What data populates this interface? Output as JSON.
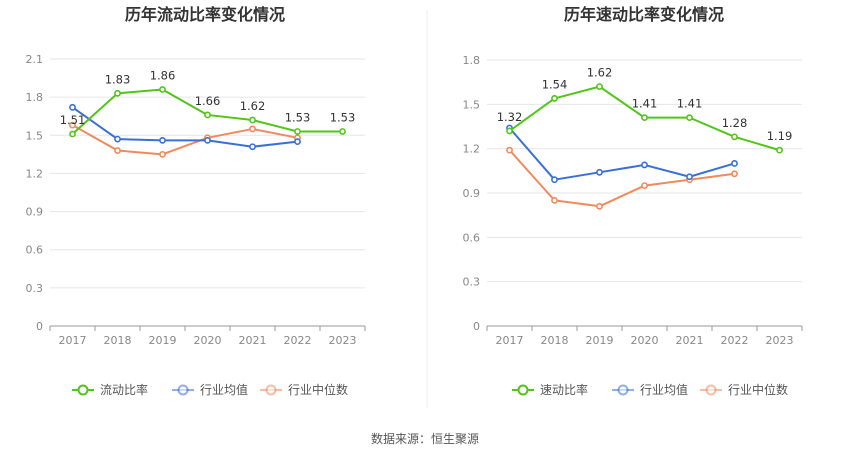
{
  "source": "数据来源：恒生聚源",
  "colors": {
    "company": "#52c41a",
    "industry_avg": "#3a6fd8",
    "industry_median": "#f08a5d",
    "grid": "#e6e6e6",
    "axis": "#999999"
  },
  "chart_data": [
    {
      "type": "line",
      "title": "历年流动比率变化情况",
      "categories": [
        "2017",
        "2018",
        "2019",
        "2020",
        "2021",
        "2022",
        "2023"
      ],
      "ylim": [
        0,
        2.1
      ],
      "yticks": [
        "0",
        "0.3",
        "0.6",
        "0.9",
        "1.2",
        "1.5",
        "1.8",
        "2.1"
      ],
      "grid": true,
      "legend_position": "bottom",
      "series": [
        {
          "name": "流动比率",
          "key": "company",
          "values": [
            1.51,
            1.83,
            1.86,
            1.66,
            1.62,
            1.53,
            1.53
          ],
          "labels": [
            "1.51",
            "1.83",
            "1.86",
            "1.66",
            "1.62",
            "1.53",
            "1.53"
          ]
        },
        {
          "name": "行业均值",
          "key": "industry_avg",
          "values": [
            1.72,
            1.47,
            1.46,
            1.46,
            1.41,
            1.45,
            null
          ]
        },
        {
          "name": "行业中位数",
          "key": "industry_median",
          "values": [
            1.58,
            1.38,
            1.35,
            1.48,
            1.55,
            1.48,
            null
          ]
        }
      ]
    },
    {
      "type": "line",
      "title": "历年速动比率变化情况",
      "categories": [
        "2017",
        "2018",
        "2019",
        "2020",
        "2021",
        "2022",
        "2023"
      ],
      "ylim": [
        0,
        1.8
      ],
      "yticks": [
        "0",
        "0.3",
        "0.6",
        "0.9",
        "1.2",
        "1.5",
        "1.8"
      ],
      "grid": true,
      "legend_position": "bottom",
      "series": [
        {
          "name": "速动比率",
          "key": "company",
          "values": [
            1.32,
            1.54,
            1.62,
            1.41,
            1.41,
            1.28,
            1.19
          ],
          "labels": [
            "1.32",
            "1.54",
            "1.62",
            "1.41",
            "1.41",
            "1.28",
            "1.19"
          ]
        },
        {
          "name": "行业均值",
          "key": "industry_avg",
          "values": [
            1.34,
            0.99,
            1.04,
            1.09,
            1.01,
            1.1,
            null
          ]
        },
        {
          "name": "行业中位数",
          "key": "industry_median",
          "values": [
            1.19,
            0.85,
            0.81,
            0.95,
            0.99,
            1.03,
            null
          ]
        }
      ]
    }
  ]
}
